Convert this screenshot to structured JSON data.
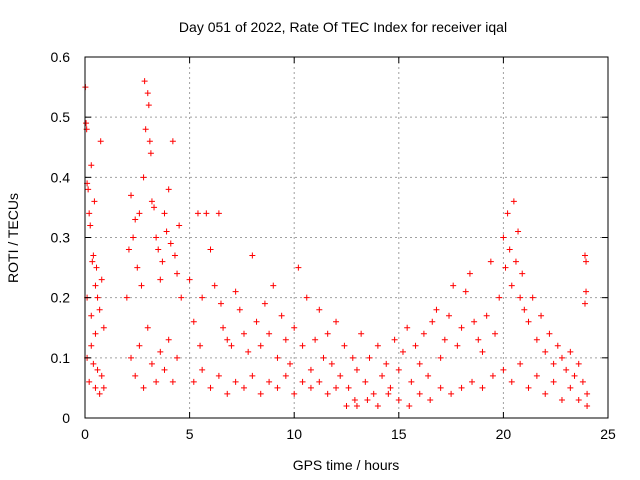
{
  "chart_data": {
    "type": "scatter",
    "title": "Day 051 of 2022, Rate Of TEC Index for receiver iqal",
    "xlabel": "GPS time / hours",
    "ylabel": "ROTI / TECUs",
    "xlim": [
      0,
      25
    ],
    "ylim": [
      0,
      0.6
    ],
    "xticks": [
      0,
      5,
      10,
      15,
      20,
      25
    ],
    "yticks": [
      0,
      0.1,
      0.2,
      0.3,
      0.4,
      0.5,
      0.6
    ],
    "xtick_labels": [
      "0",
      "5",
      "10",
      "15",
      "20",
      "25"
    ],
    "ytick_labels": [
      "0",
      "0.1",
      "0.2",
      "0.3",
      "0.4",
      "0.5",
      "0.6"
    ],
    "grid": true,
    "marker": "+",
    "marker_color": "#ff0000",
    "points": [
      [
        0.02,
        0.55
      ],
      [
        0.05,
        0.49
      ],
      [
        0.08,
        0.48
      ],
      [
        0.1,
        0.39
      ],
      [
        0.15,
        0.38
      ],
      [
        0.2,
        0.34
      ],
      [
        0.25,
        0.32
      ],
      [
        0.3,
        0.42
      ],
      [
        0.35,
        0.26
      ],
      [
        0.4,
        0.27
      ],
      [
        0.45,
        0.36
      ],
      [
        0.5,
        0.22
      ],
      [
        0.55,
        0.25
      ],
      [
        0.6,
        0.2
      ],
      [
        0.7,
        0.18
      ],
      [
        0.75,
        0.46
      ],
      [
        0.8,
        0.23
      ],
      [
        0.9,
        0.15
      ],
      [
        0.1,
        0.1
      ],
      [
        0.2,
        0.06
      ],
      [
        0.3,
        0.12
      ],
      [
        0.4,
        0.09
      ],
      [
        0.5,
        0.05
      ],
      [
        0.6,
        0.08
      ],
      [
        0.7,
        0.04
      ],
      [
        0.8,
        0.07
      ],
      [
        0.9,
        0.05
      ],
      [
        0.1,
        0.2
      ],
      [
        0.3,
        0.17
      ],
      [
        0.5,
        0.14
      ],
      [
        2.0,
        0.2
      ],
      [
        2.1,
        0.28
      ],
      [
        2.2,
        0.37
      ],
      [
        2.3,
        0.3
      ],
      [
        2.4,
        0.33
      ],
      [
        2.5,
        0.25
      ],
      [
        2.6,
        0.34
      ],
      [
        2.7,
        0.22
      ],
      [
        2.8,
        0.4
      ],
      [
        2.85,
        0.56
      ],
      [
        2.9,
        0.48
      ],
      [
        3.0,
        0.54
      ],
      [
        3.05,
        0.52
      ],
      [
        3.1,
        0.46
      ],
      [
        3.15,
        0.44
      ],
      [
        3.2,
        0.36
      ],
      [
        3.3,
        0.35
      ],
      [
        3.4,
        0.3
      ],
      [
        3.5,
        0.28
      ],
      [
        3.6,
        0.23
      ],
      [
        3.7,
        0.26
      ],
      [
        3.8,
        0.34
      ],
      [
        3.9,
        0.31
      ],
      [
        4.0,
        0.38
      ],
      [
        4.1,
        0.29
      ],
      [
        4.2,
        0.46
      ],
      [
        4.3,
        0.27
      ],
      [
        4.4,
        0.24
      ],
      [
        4.5,
        0.32
      ],
      [
        4.6,
        0.2
      ],
      [
        2.2,
        0.1
      ],
      [
        2.4,
        0.07
      ],
      [
        2.6,
        0.12
      ],
      [
        2.8,
        0.05
      ],
      [
        3.0,
        0.15
      ],
      [
        3.2,
        0.09
      ],
      [
        3.4,
        0.06
      ],
      [
        3.6,
        0.11
      ],
      [
        3.8,
        0.08
      ],
      [
        4.0,
        0.13
      ],
      [
        4.2,
        0.06
      ],
      [
        4.4,
        0.1
      ],
      [
        5.0,
        0.23
      ],
      [
        5.2,
        0.16
      ],
      [
        5.4,
        0.34
      ],
      [
        5.5,
        0.12
      ],
      [
        5.6,
        0.2
      ],
      [
        5.8,
        0.34
      ],
      [
        6.0,
        0.28
      ],
      [
        6.2,
        0.22
      ],
      [
        6.4,
        0.34
      ],
      [
        6.5,
        0.19
      ],
      [
        6.6,
        0.15
      ],
      [
        6.8,
        0.13
      ],
      [
        7.0,
        0.12
      ],
      [
        7.2,
        0.21
      ],
      [
        7.4,
        0.18
      ],
      [
        7.6,
        0.14
      ],
      [
        7.8,
        0.11
      ],
      [
        8.0,
        0.27
      ],
      [
        8.2,
        0.16
      ],
      [
        8.4,
        0.12
      ],
      [
        8.6,
        0.19
      ],
      [
        8.8,
        0.14
      ],
      [
        9.0,
        0.22
      ],
      [
        9.2,
        0.1
      ],
      [
        9.4,
        0.17
      ],
      [
        9.6,
        0.13
      ],
      [
        9.8,
        0.09
      ],
      [
        10.0,
        0.15
      ],
      [
        10.2,
        0.25
      ],
      [
        10.4,
        0.12
      ],
      [
        10.6,
        0.2
      ],
      [
        10.8,
        0.08
      ],
      [
        11.0,
        0.13
      ],
      [
        11.2,
        0.18
      ],
      [
        11.4,
        0.1
      ],
      [
        11.6,
        0.14
      ],
      [
        11.8,
        0.09
      ],
      [
        12.0,
        0.16
      ],
      [
        12.2,
        0.07
      ],
      [
        12.4,
        0.12
      ],
      [
        12.6,
        0.05
      ],
      [
        12.8,
        0.1
      ],
      [
        5.2,
        0.06
      ],
      [
        5.6,
        0.08
      ],
      [
        6.0,
        0.05
      ],
      [
        6.4,
        0.07
      ],
      [
        6.8,
        0.04
      ],
      [
        7.2,
        0.06
      ],
      [
        7.6,
        0.05
      ],
      [
        8.0,
        0.07
      ],
      [
        8.4,
        0.04
      ],
      [
        8.8,
        0.06
      ],
      [
        9.2,
        0.05
      ],
      [
        9.6,
        0.07
      ],
      [
        10.0,
        0.04
      ],
      [
        10.4,
        0.06
      ],
      [
        10.8,
        0.05
      ],
      [
        11.2,
        0.06
      ],
      [
        11.6,
        0.04
      ],
      [
        12.0,
        0.05
      ],
      [
        12.5,
        0.02
      ],
      [
        12.9,
        0.03
      ],
      [
        13.0,
        0.08
      ],
      [
        13.2,
        0.14
      ],
      [
        13.4,
        0.06
      ],
      [
        13.6,
        0.1
      ],
      [
        13.8,
        0.04
      ],
      [
        14.0,
        0.12
      ],
      [
        14.2,
        0.07
      ],
      [
        14.4,
        0.09
      ],
      [
        14.6,
        0.05
      ],
      [
        14.8,
        0.13
      ],
      [
        15.0,
        0.08
      ],
      [
        15.2,
        0.11
      ],
      [
        15.4,
        0.15
      ],
      [
        15.6,
        0.06
      ],
      [
        15.8,
        0.12
      ],
      [
        16.0,
        0.09
      ],
      [
        16.2,
        0.14
      ],
      [
        16.4,
        0.07
      ],
      [
        16.6,
        0.16
      ],
      [
        16.8,
        0.18
      ],
      [
        17.0,
        0.1
      ],
      [
        17.2,
        0.13
      ],
      [
        17.4,
        0.17
      ],
      [
        17.6,
        0.22
      ],
      [
        17.8,
        0.12
      ],
      [
        18.0,
        0.15
      ],
      [
        18.2,
        0.21
      ],
      [
        18.4,
        0.24
      ],
      [
        18.6,
        0.16
      ],
      [
        18.8,
        0.13
      ],
      [
        19.0,
        0.11
      ],
      [
        19.2,
        0.17
      ],
      [
        19.4,
        0.26
      ],
      [
        19.6,
        0.14
      ],
      [
        13.0,
        0.02
      ],
      [
        13.5,
        0.03
      ],
      [
        14.0,
        0.02
      ],
      [
        14.5,
        0.04
      ],
      [
        15.0,
        0.03
      ],
      [
        15.5,
        0.02
      ],
      [
        16.0,
        0.04
      ],
      [
        16.5,
        0.03
      ],
      [
        17.0,
        0.05
      ],
      [
        17.5,
        0.04
      ],
      [
        18.0,
        0.05
      ],
      [
        18.5,
        0.06
      ],
      [
        19.0,
        0.05
      ],
      [
        19.5,
        0.07
      ],
      [
        19.8,
        0.2
      ],
      [
        20.0,
        0.3
      ],
      [
        20.1,
        0.25
      ],
      [
        20.2,
        0.34
      ],
      [
        20.3,
        0.28
      ],
      [
        20.4,
        0.22
      ],
      [
        20.5,
        0.36
      ],
      [
        20.6,
        0.26
      ],
      [
        20.7,
        0.31
      ],
      [
        20.8,
        0.2
      ],
      [
        20.9,
        0.24
      ],
      [
        21.0,
        0.18
      ],
      [
        21.2,
        0.16
      ],
      [
        21.4,
        0.2
      ],
      [
        21.6,
        0.13
      ],
      [
        21.8,
        0.17
      ],
      [
        22.0,
        0.11
      ],
      [
        22.2,
        0.14
      ],
      [
        22.4,
        0.09
      ],
      [
        22.6,
        0.12
      ],
      [
        22.8,
        0.1
      ],
      [
        23.0,
        0.08
      ],
      [
        23.2,
        0.11
      ],
      [
        23.4,
        0.07
      ],
      [
        23.6,
        0.09
      ],
      [
        23.8,
        0.06
      ],
      [
        23.9,
        0.27
      ],
      [
        23.95,
        0.26
      ],
      [
        23.9,
        0.19
      ],
      [
        23.95,
        0.21
      ],
      [
        20.0,
        0.08
      ],
      [
        20.4,
        0.06
      ],
      [
        20.8,
        0.09
      ],
      [
        21.2,
        0.05
      ],
      [
        21.6,
        0.07
      ],
      [
        22.0,
        0.04
      ],
      [
        22.4,
        0.06
      ],
      [
        22.8,
        0.03
      ],
      [
        23.2,
        0.05
      ],
      [
        23.6,
        0.03
      ],
      [
        24.0,
        0.02
      ],
      [
        24.0,
        0.04
      ]
    ]
  }
}
